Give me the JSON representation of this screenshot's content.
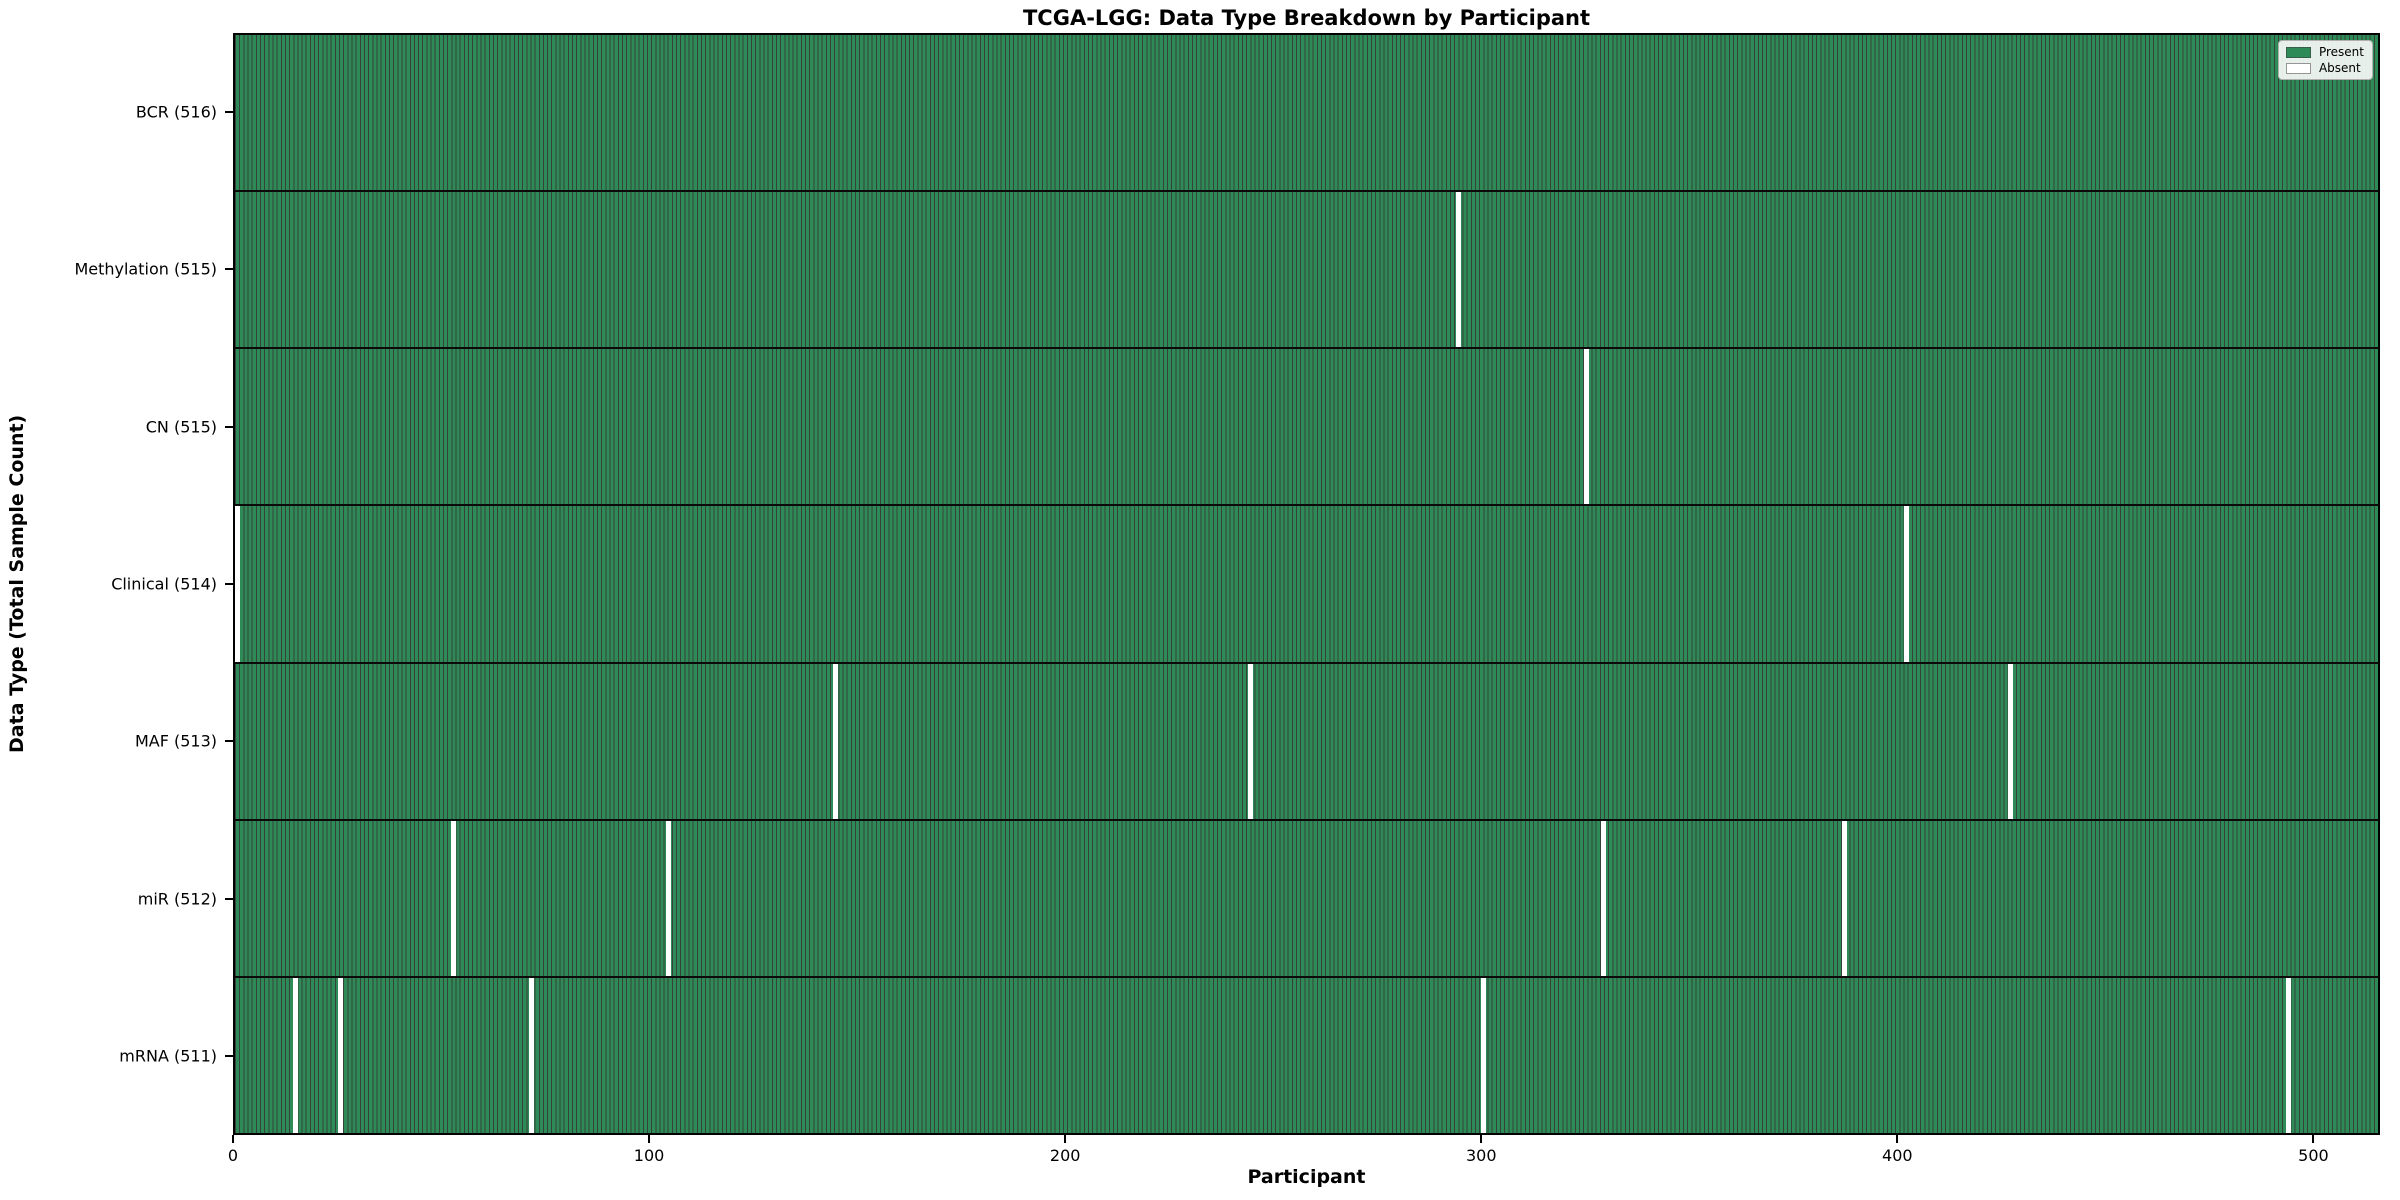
{
  "chart_data": {
    "type": "heatmap",
    "title": "TCGA-LGG: Data Type Breakdown by Participant",
    "xlabel": "Participant",
    "ylabel": "Data Type (Total Sample Count)",
    "n_participants": 516,
    "xlim": [
      0,
      516
    ],
    "x_ticks": [
      0,
      100,
      200,
      300,
      400,
      500
    ],
    "grid": false,
    "rows": [
      {
        "label": "BCR (516)",
        "data_type": "BCR",
        "total": 516,
        "absent_participants": []
      },
      {
        "label": "Methylation (515)",
        "data_type": "Methylation",
        "total": 515,
        "absent_participants": [
          294
        ]
      },
      {
        "label": "CN (515)",
        "data_type": "CN",
        "total": 515,
        "absent_participants": [
          325
        ]
      },
      {
        "label": "Clinical (514)",
        "data_type": "Clinical",
        "total": 514,
        "absent_participants": [
          0,
          402
        ]
      },
      {
        "label": "MAF (513)",
        "data_type": "MAF",
        "total": 513,
        "absent_participants": [
          144,
          244,
          427
        ]
      },
      {
        "label": "miR (512)",
        "data_type": "miR",
        "total": 512,
        "absent_participants": [
          52,
          104,
          329,
          387
        ]
      },
      {
        "label": "mRNA (511)",
        "data_type": "mRNA",
        "total": 511,
        "absent_participants": [
          14,
          25,
          71,
          300,
          494
        ]
      }
    ],
    "legend": {
      "position": "upper right",
      "entries": [
        {
          "label": "Present",
          "color": "#2e8b57"
        },
        {
          "label": "Absent",
          "color": "#ffffff"
        }
      ]
    },
    "colors": {
      "present": "#2e8b57",
      "absent": "#ffffff",
      "cell_edge": "#0a1810",
      "row_separator": "#0a0a0a",
      "background": "#ffffff"
    }
  }
}
